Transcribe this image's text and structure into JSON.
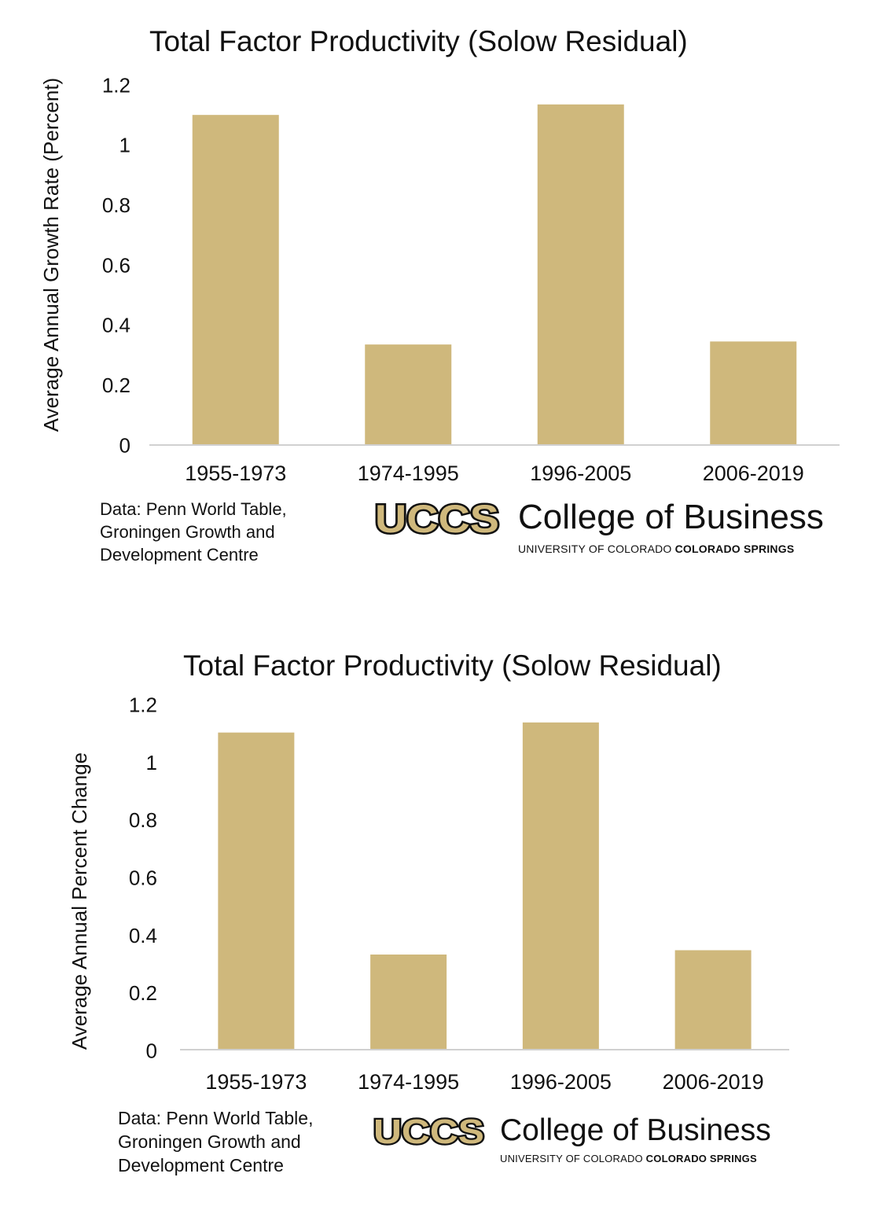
{
  "chart_data": [
    {
      "type": "bar",
      "title": "Total Factor Productivity (Solow Residual)",
      "xlabel": "",
      "ylabel": "Average Annual Growth Rate (Percent)",
      "categories": [
        "1955-1973",
        "1974-1995",
        "1996-2005",
        "2006-2019"
      ],
      "values": [
        1.1,
        0.335,
        1.135,
        0.345
      ],
      "ylim": [
        0,
        1.2
      ],
      "yticks": [
        "0",
        "0.2",
        "0.4",
        "0.6",
        "0.8",
        "1",
        "1.2"
      ],
      "grid": false,
      "bar_color": "#cfb87c",
      "axis_color": "#d0d0d0"
    },
    {
      "type": "bar",
      "title": "Total Factor Productivity (Solow Residual)",
      "xlabel": "",
      "ylabel": "Average Annual Percent Change",
      "categories": [
        "1955-1973",
        "1974-1995",
        "1996-2005",
        "2006-2019"
      ],
      "values": [
        1.1,
        0.33,
        1.135,
        0.345
      ],
      "ylim": [
        0,
        1.2
      ],
      "yticks": [
        "0",
        "0.2",
        "0.4",
        "0.6",
        "0.8",
        "1",
        "1.2"
      ],
      "grid": false,
      "bar_color": "#cfb87c",
      "axis_color": "#d0d0d0"
    }
  ],
  "footers": [
    {
      "source_lines": [
        "Data: Penn World Table,",
        "Groningen Growth and",
        "Development Centre"
      ],
      "logo_mark": "UCCS",
      "logo_college": "College of Business",
      "logo_sub_regular": "UNIVERSITY OF COLORADO ",
      "logo_sub_bold": "COLORADO SPRINGS"
    },
    {
      "source_lines": [
        "Data: Penn World Table,",
        "Groningen Growth and",
        "Development Centre"
      ],
      "logo_mark": "UCCS",
      "logo_college": "College of Business",
      "logo_sub_regular": "UNIVERSITY OF COLORADO ",
      "logo_sub_bold": "COLORADO SPRINGS"
    }
  ],
  "colors": {
    "brand_gold": "#cfb87c",
    "logo_outline": "#111111"
  }
}
